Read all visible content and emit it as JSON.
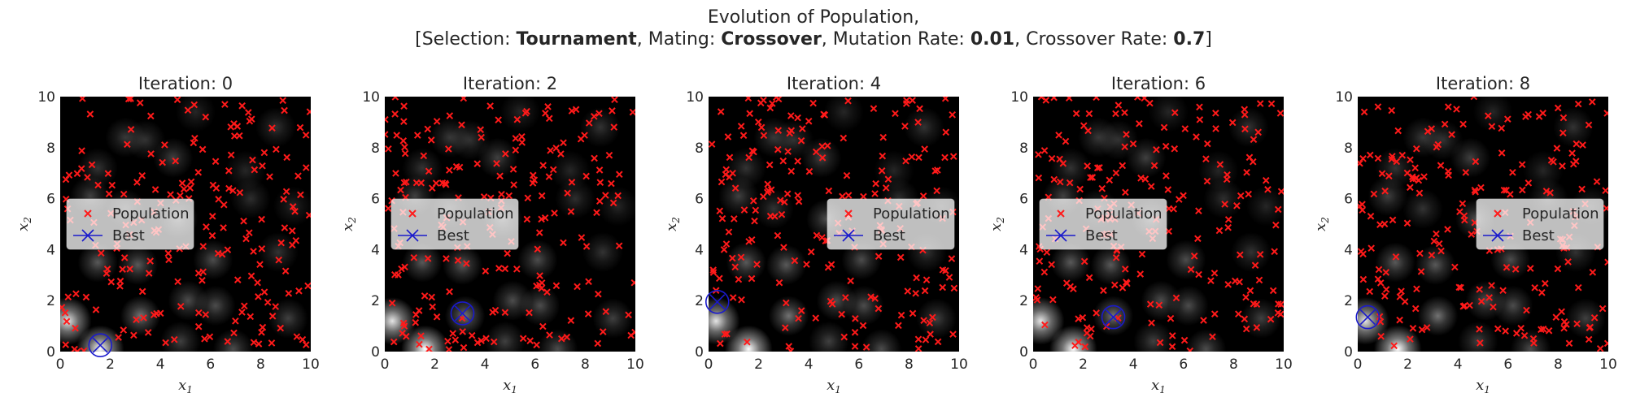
{
  "figure": {
    "title_line1": "Evolution of Population,",
    "title_parts": [
      {
        "text": "[Selection: ",
        "bold": false
      },
      {
        "text": "Tournament",
        "bold": true
      },
      {
        "text": ", Mating: ",
        "bold": false
      },
      {
        "text": "Crossover",
        "bold": true
      },
      {
        "text": ", Mutation Rate: ",
        "bold": false
      },
      {
        "text": "0.01",
        "bold": true
      },
      {
        "text": ", Crossover Rate: ",
        "bold": false
      },
      {
        "text": "0.7",
        "bold": true
      },
      {
        "text": "]",
        "bold": false
      }
    ]
  },
  "colors": {
    "population": "#ff1a1a",
    "best": "#1a1acc",
    "background": "#000000",
    "blob": "#ffffff"
  },
  "legend": {
    "population_label": "Population",
    "best_label": "Best",
    "placement": [
      "center-left",
      "center-left",
      "center-right",
      "center-left",
      "center-right"
    ]
  },
  "chart_data": [
    {
      "type": "scatter",
      "title": "Iteration: 0",
      "xlabel": "x1",
      "ylabel": "x2",
      "xlim": [
        0,
        10
      ],
      "ylim": [
        0,
        10
      ],
      "xticks": [
        0,
        2,
        4,
        6,
        8,
        10
      ],
      "yticks": [
        0,
        2,
        4,
        6,
        8,
        10
      ],
      "grid": false,
      "best": [
        1.6,
        0.25
      ],
      "seed": 11
    },
    {
      "type": "scatter",
      "title": "Iteration: 2",
      "xlabel": "x1",
      "ylabel": "x2",
      "xlim": [
        0,
        10
      ],
      "ylim": [
        0,
        10
      ],
      "xticks": [
        0,
        2,
        4,
        6,
        8,
        10
      ],
      "yticks": [
        0,
        2,
        4,
        6,
        8,
        10
      ],
      "grid": false,
      "best": [
        3.1,
        1.5
      ],
      "seed": 23
    },
    {
      "type": "scatter",
      "title": "Iteration: 4",
      "xlabel": "x1",
      "ylabel": "x2",
      "xlim": [
        0,
        10
      ],
      "ylim": [
        0,
        10
      ],
      "xticks": [
        0,
        2,
        4,
        6,
        8,
        10
      ],
      "yticks": [
        0,
        2,
        4,
        6,
        8,
        10
      ],
      "grid": false,
      "best": [
        0.35,
        1.95
      ],
      "seed": 37
    },
    {
      "type": "scatter",
      "title": "Iteration: 6",
      "xlabel": "x1",
      "ylabel": "x2",
      "xlim": [
        0,
        10
      ],
      "ylim": [
        0,
        10
      ],
      "xticks": [
        0,
        2,
        4,
        6,
        8,
        10
      ],
      "yticks": [
        0,
        2,
        4,
        6,
        8,
        10
      ],
      "grid": false,
      "best": [
        3.2,
        1.35
      ],
      "seed": 41
    },
    {
      "type": "scatter",
      "title": "Iteration: 8",
      "xlabel": "x1",
      "ylabel": "x2",
      "xlim": [
        0,
        10
      ],
      "ylim": [
        0,
        10
      ],
      "xticks": [
        0,
        2,
        4,
        6,
        8,
        10
      ],
      "yticks": [
        0,
        2,
        4,
        6,
        8,
        10
      ],
      "grid": false,
      "best": [
        0.4,
        1.35
      ],
      "seed": 53
    }
  ],
  "landscape_peaks": [
    [
      0.3,
      1.2,
      0.9
    ],
    [
      1.6,
      0.1,
      1.0
    ],
    [
      3.1,
      3.4,
      0.35
    ],
    [
      1.5,
      3.5,
      0.35
    ],
    [
      3.2,
      1.4,
      0.45
    ],
    [
      5.1,
      2.0,
      0.3
    ],
    [
      6.2,
      1.8,
      0.3
    ],
    [
      6.1,
      3.6,
      0.3
    ],
    [
      4.7,
      5.2,
      0.3
    ],
    [
      1.2,
      6.1,
      0.25
    ],
    [
      2.6,
      5.6,
      0.2
    ],
    [
      4.5,
      7.6,
      0.25
    ],
    [
      2.6,
      8.4,
      0.22
    ],
    [
      1.5,
      7.2,
      0.2
    ],
    [
      7.6,
      6.0,
      0.18
    ],
    [
      8.7,
      3.9,
      0.2
    ],
    [
      8.6,
      8.8,
      0.2
    ],
    [
      5.4,
      9.4,
      0.15
    ],
    [
      9.1,
      1.3,
      0.25
    ],
    [
      6.9,
      0.1,
      0.3
    ],
    [
      4.8,
      0.4,
      0.25
    ],
    [
      3.4,
      8.3,
      0.2
    ],
    [
      9.3,
      5.7,
      0.15
    ],
    [
      7.4,
      7.1,
      0.15
    ]
  ]
}
